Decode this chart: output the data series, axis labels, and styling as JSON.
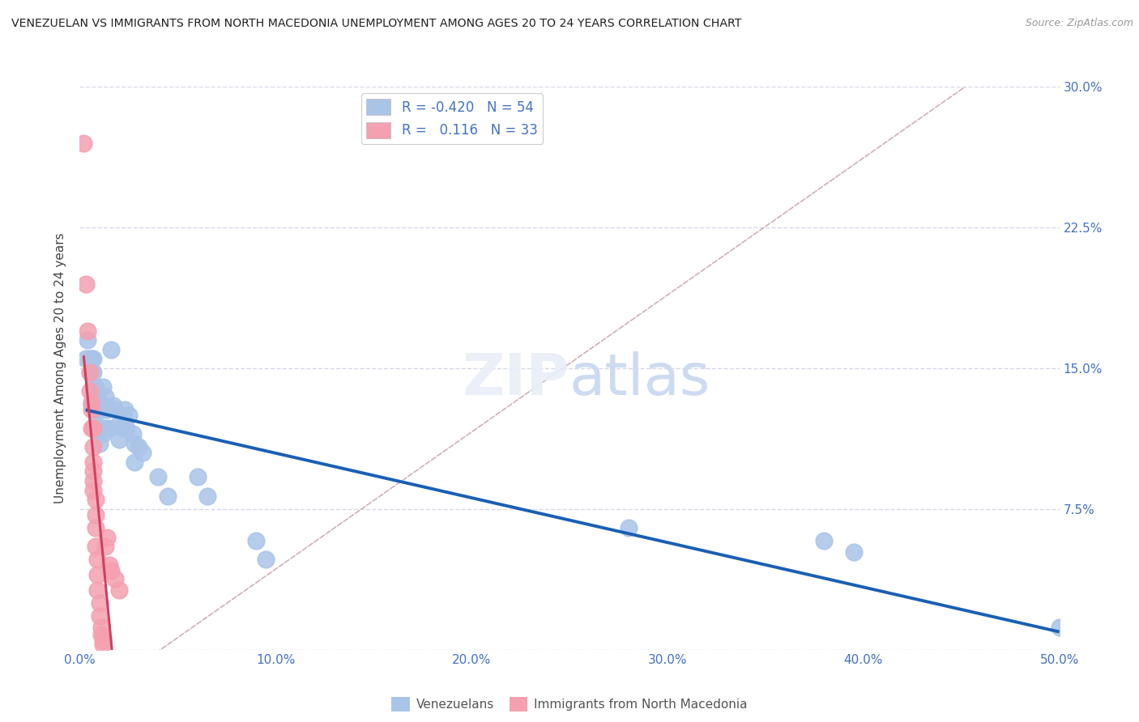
{
  "title": "VENEZUELAN VS IMMIGRANTS FROM NORTH MACEDONIA UNEMPLOYMENT AMONG AGES 20 TO 24 YEARS CORRELATION CHART",
  "source": "Source: ZipAtlas.com",
  "ylabel": "Unemployment Among Ages 20 to 24 years",
  "xlim": [
    0.0,
    0.5
  ],
  "ylim": [
    0.0,
    0.3
  ],
  "xticks": [
    0.0,
    0.1,
    0.2,
    0.3,
    0.4,
    0.5
  ],
  "xticklabels": [
    "0.0%",
    "10.0%",
    "20.0%",
    "30.0%",
    "40.0%",
    "50.0%"
  ],
  "yticks": [
    0.0,
    0.075,
    0.15,
    0.225,
    0.3
  ],
  "yticklabels_right": [
    "",
    "7.5%",
    "15.0%",
    "22.5%",
    "30.0%"
  ],
  "legend_label1": "Venezuelans",
  "legend_label2": "Immigrants from North Macedonia",
  "blue_color": "#aac4e8",
  "pink_color": "#f4a0b0",
  "blue_line_color": "#1a5fb4",
  "pink_line_color": "#d04060",
  "ref_line_color": "#d0b0b8",
  "ref_line_color2": "#c8c8d8",
  "background_color": "#ffffff",
  "title_fontsize": 10.5,
  "axis_color": "#4472c4",
  "grid_color": "#d8d8e8",
  "blue_scatter": [
    [
      0.003,
      0.155
    ],
    [
      0.004,
      0.165
    ],
    [
      0.005,
      0.155
    ],
    [
      0.005,
      0.148
    ],
    [
      0.006,
      0.155
    ],
    [
      0.006,
      0.148
    ],
    [
      0.006,
      0.13
    ],
    [
      0.007,
      0.155
    ],
    [
      0.007,
      0.148
    ],
    [
      0.007,
      0.14
    ],
    [
      0.007,
      0.132
    ],
    [
      0.008,
      0.14
    ],
    [
      0.008,
      0.128
    ],
    [
      0.008,
      0.12
    ],
    [
      0.009,
      0.135
    ],
    [
      0.009,
      0.128
    ],
    [
      0.009,
      0.118
    ],
    [
      0.01,
      0.132
    ],
    [
      0.01,
      0.118
    ],
    [
      0.01,
      0.11
    ],
    [
      0.011,
      0.13
    ],
    [
      0.011,
      0.118
    ],
    [
      0.012,
      0.14
    ],
    [
      0.012,
      0.128
    ],
    [
      0.012,
      0.115
    ],
    [
      0.013,
      0.135
    ],
    [
      0.013,
      0.118
    ],
    [
      0.014,
      0.128
    ],
    [
      0.015,
      0.118
    ],
    [
      0.016,
      0.16
    ],
    [
      0.017,
      0.13
    ],
    [
      0.018,
      0.128
    ],
    [
      0.02,
      0.12
    ],
    [
      0.02,
      0.112
    ],
    [
      0.022,
      0.125
    ],
    [
      0.022,
      0.118
    ],
    [
      0.023,
      0.128
    ],
    [
      0.024,
      0.118
    ],
    [
      0.025,
      0.125
    ],
    [
      0.027,
      0.115
    ],
    [
      0.028,
      0.11
    ],
    [
      0.028,
      0.1
    ],
    [
      0.03,
      0.108
    ],
    [
      0.032,
      0.105
    ],
    [
      0.04,
      0.092
    ],
    [
      0.045,
      0.082
    ],
    [
      0.06,
      0.092
    ],
    [
      0.065,
      0.082
    ],
    [
      0.09,
      0.058
    ],
    [
      0.095,
      0.048
    ],
    [
      0.28,
      0.065
    ],
    [
      0.38,
      0.058
    ],
    [
      0.395,
      0.052
    ],
    [
      0.5,
      0.012
    ]
  ],
  "pink_scatter": [
    [
      0.002,
      0.27
    ],
    [
      0.003,
      0.195
    ],
    [
      0.004,
      0.17
    ],
    [
      0.005,
      0.148
    ],
    [
      0.005,
      0.138
    ],
    [
      0.006,
      0.132
    ],
    [
      0.006,
      0.128
    ],
    [
      0.006,
      0.118
    ],
    [
      0.007,
      0.118
    ],
    [
      0.007,
      0.108
    ],
    [
      0.007,
      0.1
    ],
    [
      0.007,
      0.095
    ],
    [
      0.007,
      0.09
    ],
    [
      0.007,
      0.085
    ],
    [
      0.008,
      0.08
    ],
    [
      0.008,
      0.072
    ],
    [
      0.008,
      0.065
    ],
    [
      0.008,
      0.055
    ],
    [
      0.009,
      0.048
    ],
    [
      0.009,
      0.04
    ],
    [
      0.009,
      0.032
    ],
    [
      0.01,
      0.025
    ],
    [
      0.01,
      0.018
    ],
    [
      0.011,
      0.012
    ],
    [
      0.011,
      0.008
    ],
    [
      0.012,
      0.005
    ],
    [
      0.012,
      0.003
    ],
    [
      0.013,
      0.055
    ],
    [
      0.014,
      0.06
    ],
    [
      0.015,
      0.045
    ],
    [
      0.016,
      0.042
    ],
    [
      0.018,
      0.038
    ],
    [
      0.02,
      0.032
    ]
  ],
  "blue_trend_x": [
    0.003,
    0.5
  ],
  "pink_trend_x": [
    0.002,
    0.02
  ]
}
